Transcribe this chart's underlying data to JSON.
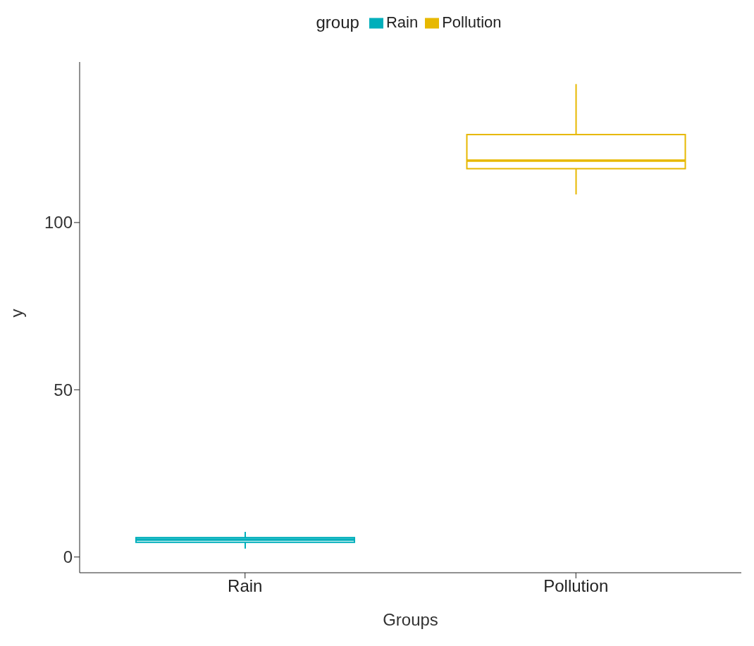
{
  "chart_data": {
    "type": "box",
    "categories": [
      "Rain",
      "Pollution"
    ],
    "series": [
      {
        "name": "Rain",
        "color": "#00afbb",
        "boxes": [
          {
            "low": 2.5,
            "q1": 4.4,
            "median": 5.2,
            "q3": 5.8,
            "high": 7.5
          },
          null
        ]
      },
      {
        "name": "Pollution",
        "color": "#e7b800",
        "boxes": [
          null,
          {
            "low": 108.4,
            "q1": 116.1,
            "median": 118.5,
            "q3": 126.3,
            "high": 141.4
          }
        ]
      }
    ],
    "xlabel": "Groups",
    "ylabel": "y",
    "legend_title": "group",
    "legend": "top",
    "grid": false,
    "ylim": [
      -4.7,
      148
    ],
    "yticks": [
      0,
      50,
      100
    ]
  }
}
